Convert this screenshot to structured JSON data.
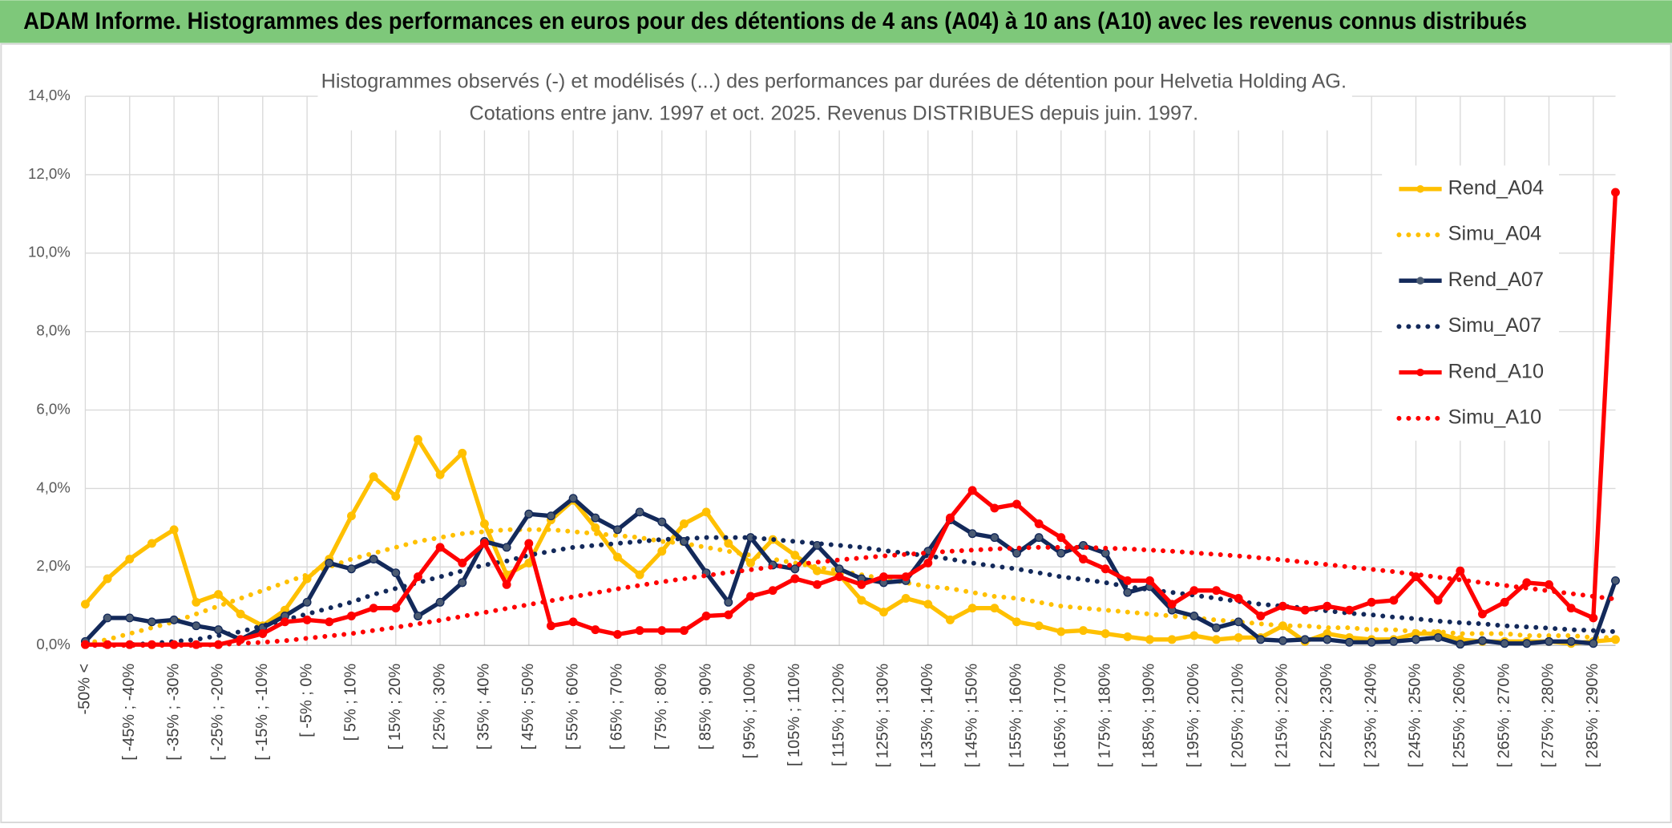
{
  "chart_data": {
    "type": "line",
    "title": "ADAM Informe. Histogrammes des performances en euros pour des détentions de 4 ans (A04) à 10 ans (A10) avec les revenus connus distribués",
    "subtitle": [
      "Histogrammes observés (-) et modélisés (...) des performances par durées de détention pour Helvetia Holding AG.",
      "Cotations entre janv. 1997 et oct. 2025. Revenus DISTRIBUES depuis juin. 1997."
    ],
    "categories": [
      "-50% <",
      null,
      "[ -45% ; -40%",
      null,
      "[ -35% ; -30%",
      null,
      "[ -25% ; -20%",
      null,
      "[ -15% ; -10%",
      null,
      "[ -5% ; 0%",
      null,
      "[ 5% ; 10%",
      null,
      "[ 15% ; 20%",
      null,
      "[ 25% ; 30%",
      null,
      "[ 35% ; 40%",
      null,
      "[ 45% ; 50%",
      null,
      "[ 55% ; 60%",
      null,
      "[ 65% ; 70%",
      null,
      "[ 75% ; 80%",
      null,
      "[ 85% ; 90%",
      null,
      "[ 95% ; 100%",
      null,
      "[ 105% ; 110%",
      null,
      "[ 115% ; 120%",
      null,
      "[ 125% ; 130%",
      null,
      "[ 135% ; 140%",
      null,
      "[ 145% ; 150%",
      null,
      "[ 155% ; 160%",
      null,
      "[ 165% ; 170%",
      null,
      "[ 175% ; 180%",
      null,
      "[ 185% ; 190%",
      null,
      "[ 195% ; 200%",
      null,
      "[ 205% ; 210%",
      null,
      "[ 215% ; 220%",
      null,
      "[ 225% ; 230%",
      null,
      "[ 235% ; 240%",
      null,
      "[ 245% ; 250%",
      null,
      "[ 255% ; 260%",
      null,
      "[ 265% ; 270%",
      null,
      "[ 275% ; 280%",
      null,
      "[ 285% ; 290%",
      null
    ],
    "ylim": [
      0,
      14
    ],
    "yticks": [
      {
        "value": 0,
        "label": "0,0%"
      },
      {
        "value": 2,
        "label": "2,0%"
      },
      {
        "value": 4,
        "label": "4,0%"
      },
      {
        "value": 6,
        "label": "6,0%"
      },
      {
        "value": 8,
        "label": "8,0%"
      },
      {
        "value": 10,
        "label": "10,0%"
      },
      {
        "value": 12,
        "label": "12,0%"
      },
      {
        "value": 14,
        "label": "14,0%"
      }
    ],
    "grid": true,
    "legend": "right",
    "series": [
      {
        "name": "Rend_A04",
        "color": "#ffc000",
        "style": "solid",
        "markers": true,
        "values": [
          1.05,
          1.7,
          2.2,
          2.6,
          2.95,
          1.1,
          1.3,
          0.8,
          0.5,
          0.9,
          1.7,
          2.2,
          3.3,
          4.3,
          3.8,
          5.25,
          4.35,
          4.9,
          3.1,
          1.8,
          2.1,
          3.2,
          3.7,
          3.0,
          2.25,
          1.8,
          2.4,
          3.1,
          3.4,
          2.6,
          2.1,
          2.7,
          2.3,
          1.9,
          1.8,
          1.15,
          0.85,
          1.2,
          1.05,
          0.65,
          0.95,
          0.95,
          0.6,
          0.5,
          0.35,
          0.38,
          0.3,
          0.22,
          0.15,
          0.15,
          0.25,
          0.15,
          0.2,
          0.2,
          0.5,
          0.1,
          0.3,
          0.2,
          0.15,
          0.15,
          0.3,
          0.3,
          0.15,
          0.1,
          0.1,
          0.1,
          0.1,
          0.05,
          0.1,
          0.15
        ]
      },
      {
        "name": "Simu_A04",
        "color": "#ffc000",
        "style": "dotted",
        "markers": false,
        "values": [
          0.05,
          0.15,
          0.3,
          0.45,
          0.6,
          0.8,
          1.0,
          1.2,
          1.4,
          1.6,
          1.8,
          2.0,
          2.2,
          2.35,
          2.5,
          2.65,
          2.75,
          2.85,
          2.9,
          2.95,
          2.95,
          2.95,
          2.9,
          2.85,
          2.8,
          2.75,
          2.65,
          2.6,
          2.5,
          2.4,
          2.3,
          2.2,
          2.1,
          2.0,
          1.9,
          1.8,
          1.7,
          1.6,
          1.5,
          1.45,
          1.35,
          1.25,
          1.2,
          1.1,
          1.0,
          0.95,
          0.9,
          0.85,
          0.8,
          0.75,
          0.7,
          0.65,
          0.6,
          0.55,
          0.5,
          0.5,
          0.45,
          0.45,
          0.4,
          0.4,
          0.35,
          0.35,
          0.3,
          0.3,
          0.3,
          0.25,
          0.25,
          0.25,
          0.2,
          0.2
        ]
      },
      {
        "name": "Rend_A07",
        "color": "#13295a",
        "style": "solid",
        "markers": true,
        "values": [
          0.1,
          0.7,
          0.7,
          0.6,
          0.65,
          0.5,
          0.4,
          0.15,
          0.45,
          0.75,
          1.1,
          2.1,
          1.95,
          2.2,
          1.85,
          0.75,
          1.1,
          1.6,
          2.65,
          2.5,
          3.35,
          3.3,
          3.75,
          3.25,
          2.95,
          3.4,
          3.15,
          2.65,
          1.85,
          1.1,
          2.75,
          2.05,
          1.95,
          2.55,
          1.95,
          1.7,
          1.6,
          1.65,
          2.4,
          3.2,
          2.85,
          2.75,
          2.35,
          2.75,
          2.35,
          2.55,
          2.35,
          1.35,
          1.5,
          0.9,
          0.75,
          0.45,
          0.6,
          0.15,
          0.12,
          0.15,
          0.15,
          0.08,
          0.08,
          0.1,
          0.15,
          0.2,
          0.03,
          0.12,
          0.05,
          0.05,
          0.1,
          0.1,
          0.05,
          1.65
        ]
      },
      {
        "name": "Simu_A07",
        "color": "#13295a",
        "style": "dotted",
        "markers": false,
        "values": [
          0,
          0,
          0.02,
          0.05,
          0.1,
          0.15,
          0.25,
          0.35,
          0.5,
          0.65,
          0.8,
          0.95,
          1.1,
          1.3,
          1.45,
          1.6,
          1.75,
          1.9,
          2.05,
          2.15,
          2.3,
          2.4,
          2.5,
          2.55,
          2.6,
          2.65,
          2.7,
          2.72,
          2.75,
          2.75,
          2.75,
          2.7,
          2.65,
          2.6,
          2.55,
          2.5,
          2.42,
          2.35,
          2.28,
          2.2,
          2.1,
          2.02,
          1.95,
          1.85,
          1.75,
          1.68,
          1.6,
          1.5,
          1.42,
          1.35,
          1.28,
          1.2,
          1.12,
          1.05,
          1.0,
          0.95,
          0.88,
          0.82,
          0.78,
          0.72,
          0.68,
          0.62,
          0.58,
          0.55,
          0.5,
          0.47,
          0.44,
          0.4,
          0.38,
          0.35
        ]
      },
      {
        "name": "Rend_A10",
        "color": "#ff0000",
        "style": "solid",
        "markers": true,
        "values": [
          0.02,
          0.02,
          0.02,
          0.02,
          0.02,
          0.02,
          0.02,
          0.15,
          0.3,
          0.6,
          0.65,
          0.6,
          0.75,
          0.95,
          0.95,
          1.75,
          2.5,
          2.1,
          2.6,
          1.55,
          2.6,
          0.5,
          0.6,
          0.4,
          0.28,
          0.38,
          0.38,
          0.38,
          0.75,
          0.78,
          1.25,
          1.4,
          1.7,
          1.55,
          1.75,
          1.55,
          1.75,
          1.75,
          2.1,
          3.25,
          3.95,
          3.5,
          3.6,
          3.1,
          2.75,
          2.2,
          1.95,
          1.65,
          1.65,
          1.05,
          1.4,
          1.4,
          1.2,
          0.75,
          1.0,
          0.9,
          1.0,
          0.9,
          1.1,
          1.15,
          1.75,
          1.15,
          1.9,
          0.8,
          1.1,
          1.6,
          1.55,
          0.95,
          0.7,
          11.55
        ]
      },
      {
        "name": "Simu_A10",
        "color": "#ff0000",
        "style": "dotted",
        "markers": false,
        "values": [
          0,
          0,
          0,
          0,
          0,
          0,
          0.02,
          0.05,
          0.08,
          0.12,
          0.18,
          0.24,
          0.3,
          0.38,
          0.46,
          0.55,
          0.64,
          0.74,
          0.84,
          0.94,
          1.04,
          1.14,
          1.24,
          1.34,
          1.44,
          1.53,
          1.62,
          1.7,
          1.78,
          1.86,
          1.93,
          2.0,
          2.06,
          2.12,
          2.18,
          2.23,
          2.28,
          2.32,
          2.36,
          2.4,
          2.43,
          2.46,
          2.48,
          2.5,
          2.5,
          2.5,
          2.48,
          2.46,
          2.43,
          2.4,
          2.36,
          2.32,
          2.28,
          2.23,
          2.18,
          2.12,
          2.06,
          2.0,
          1.94,
          1.88,
          1.81,
          1.74,
          1.67,
          1.6,
          1.53,
          1.46,
          1.39,
          1.32,
          1.25,
          1.18
        ]
      }
    ]
  }
}
